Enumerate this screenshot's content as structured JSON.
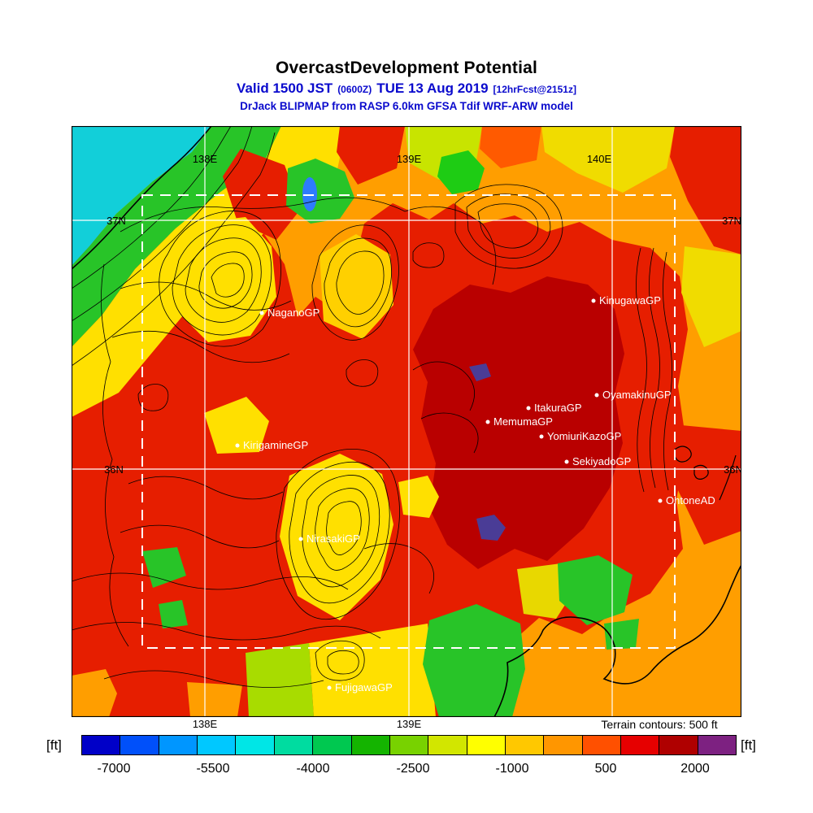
{
  "header": {
    "title": "OvercastDevelopment Potential",
    "valid_main_1": "Valid 1500 JST",
    "valid_small_1": "(0600Z)",
    "valid_main_2": "TUE 13 Aug 2019",
    "valid_small_2": "[12hrFcst@2151z]",
    "model_line": "DrJack BLIPMAP from RASP 6.0km GFSA Tdif WRF-ARW model"
  },
  "map": {
    "terrain_note": "Terrain contours: 500 ft",
    "grid": {
      "lon_labels_top": [
        "138E",
        "139E",
        "140E"
      ],
      "lon_labels_bottom": [
        "138E",
        "139E"
      ],
      "lat_labels": [
        "37N",
        "36N"
      ]
    },
    "stations": [
      {
        "name": "NaganoGP"
      },
      {
        "name": "KinugawaGP"
      },
      {
        "name": "OyamakinuGP"
      },
      {
        "name": "ItakuraGP"
      },
      {
        "name": "MemumaGP"
      },
      {
        "name": "YomiuriKazoGP"
      },
      {
        "name": "KirigamineGP"
      },
      {
        "name": "SekiyadoGP"
      },
      {
        "name": "OhtoneAD"
      },
      {
        "name": "NirasakiGP"
      },
      {
        "name": "FujigawaGP"
      }
    ]
  },
  "colorbar": {
    "unit_left": "[ft]",
    "unit_right": "[ft]",
    "ticks": [
      "-7000",
      "-5500",
      "-4000",
      "-2500",
      "-1000",
      "500",
      "2000"
    ],
    "colors": [
      "#0000C8",
      "#0050FA",
      "#0096FF",
      "#00C8FF",
      "#00E6E6",
      "#00DCA0",
      "#00C850",
      "#14B400",
      "#78D200",
      "#D2E600",
      "#FFFF00",
      "#FFC800",
      "#FF9600",
      "#FF5000",
      "#E60000",
      "#AF0000",
      "#7D2181"
    ]
  },
  "chart_data": {
    "type": "heatmap",
    "title": "OvercastDevelopment Potential",
    "valid": "Valid 1500 JST (0600Z) TUE 13 Aug 2019 [12hrFcst@2151z]",
    "source": "DrJack BLIPMAP from RASP 6.0km GFSA Tdif WRF-ARW model",
    "units": "ft",
    "colorbar_tick_values": [
      -7000,
      -5500,
      -4000,
      -2500,
      -1000,
      500,
      2000
    ],
    "colorbar_colors": [
      "#0000C8",
      "#0050FA",
      "#0096FF",
      "#00C8FF",
      "#00E6E6",
      "#00DCA0",
      "#00C850",
      "#14B400",
      "#78D200",
      "#D2E600",
      "#FFFF00",
      "#FFC800",
      "#FF9600",
      "#FF5000",
      "#E60000",
      "#AF0000",
      "#7D2181"
    ],
    "x_tick_labels": [
      "138E",
      "139E",
      "140E"
    ],
    "y_tick_labels": [
      "37N",
      "36N"
    ],
    "terrain_contour_interval_ft": 500,
    "stations": [
      "NaganoGP",
      "KinugawaGP",
      "OyamakinuGP",
      "ItakuraGP",
      "MemumaGP",
      "YomiuriKazoGP",
      "KirigamineGP",
      "SekiyadoGP",
      "OhtoneAD",
      "NirasakiGP",
      "FujigawaGP"
    ],
    "field_summary": [
      {
        "region": "northwest corner (sea, cyan)",
        "approx_value_ft": -5000
      },
      {
        "region": "northwest coastal band (green)",
        "approx_value_ft": -3200
      },
      {
        "region": "central mountain ridges (yellow)",
        "approx_value_ft": -1800
      },
      {
        "region": "western and central lowlands (red)",
        "approx_value_ft": 1200
      },
      {
        "region": "Kanto plain east-center (dark red)",
        "approx_value_ft": 2200
      },
      {
        "region": "eastern and southern fringe (orange)",
        "approx_value_ft": -200
      },
      {
        "region": "south-central valley band (green)",
        "approx_value_ft": -3000
      }
    ]
  }
}
